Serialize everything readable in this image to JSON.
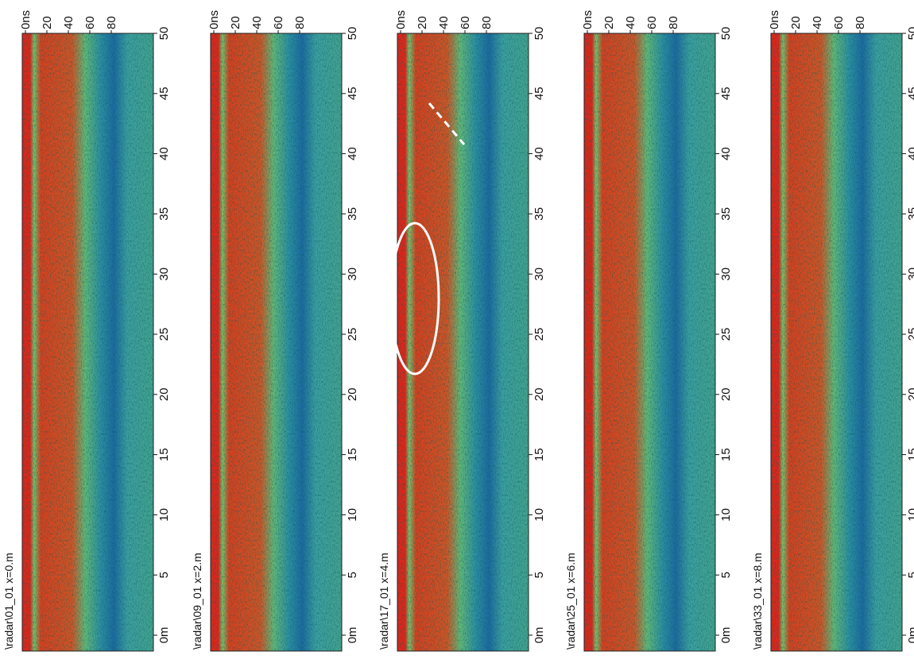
{
  "panels": [
    {
      "label": "\\radar\\01_01  x=0.m"
    },
    {
      "label": "\\radar\\09_01  x=2.m"
    },
    {
      "label": "\\radar\\17_01  x=4.m"
    },
    {
      "label": "\\radar\\25_01  x=6.m"
    },
    {
      "label": "\\radar\\33_01  x=8.m"
    }
  ],
  "time_ticks": [
    "0ns",
    "20",
    "40",
    "60",
    "80"
  ],
  "distance_ticks": [
    "50",
    "45",
    "40",
    "35",
    "30",
    "25",
    "20",
    "15",
    "10",
    "5",
    "0m"
  ]
}
